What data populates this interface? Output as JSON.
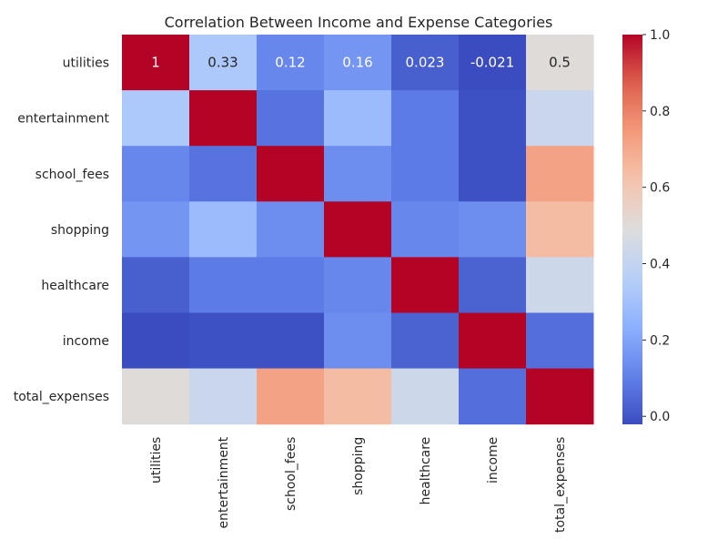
{
  "chart_data": {
    "type": "heatmap",
    "title": "Correlation Between Income and Expense Categories",
    "xlabel": "",
    "ylabel": "",
    "colormap": "coolwarm",
    "vmin": -0.021,
    "vmax": 1.0,
    "row_labels": [
      "utilities",
      "entertainment",
      "school_fees",
      "shopping",
      "healthcare",
      "income",
      "total_expenses"
    ],
    "col_labels": [
      "utilities",
      "entertainment",
      "school_fees",
      "shopping",
      "healthcare",
      "income",
      "total_expenses"
    ],
    "values": [
      [
        1,
        0.33,
        0.12,
        0.16,
        0.023,
        -0.021,
        0.5
      ],
      [
        0.33,
        1,
        0.07,
        0.28,
        0.09,
        -0.01,
        0.42
      ],
      [
        0.12,
        0.07,
        1,
        0.14,
        0.09,
        -0.01,
        0.72
      ],
      [
        0.16,
        0.28,
        0.14,
        1,
        0.12,
        0.14,
        0.64
      ],
      [
        0.023,
        0.09,
        0.09,
        0.12,
        1,
        0.03,
        0.43
      ],
      [
        -0.021,
        -0.01,
        -0.01,
        0.14,
        0.03,
        1,
        0.06
      ],
      [
        0.5,
        0.42,
        0.72,
        0.64,
        0.43,
        0.06,
        1
      ]
    ],
    "annotated_row": 0,
    "annotations": [
      "1",
      "0.33",
      "0.12",
      "0.16",
      "0.023",
      "-0.021",
      "0.5"
    ],
    "colorbar": {
      "ticks": [
        0.0,
        0.2,
        0.4,
        0.6,
        0.8,
        1.0
      ],
      "tick_labels": [
        "0.0",
        "0.2",
        "0.4",
        "0.6",
        "0.8",
        "1.0"
      ]
    }
  }
}
